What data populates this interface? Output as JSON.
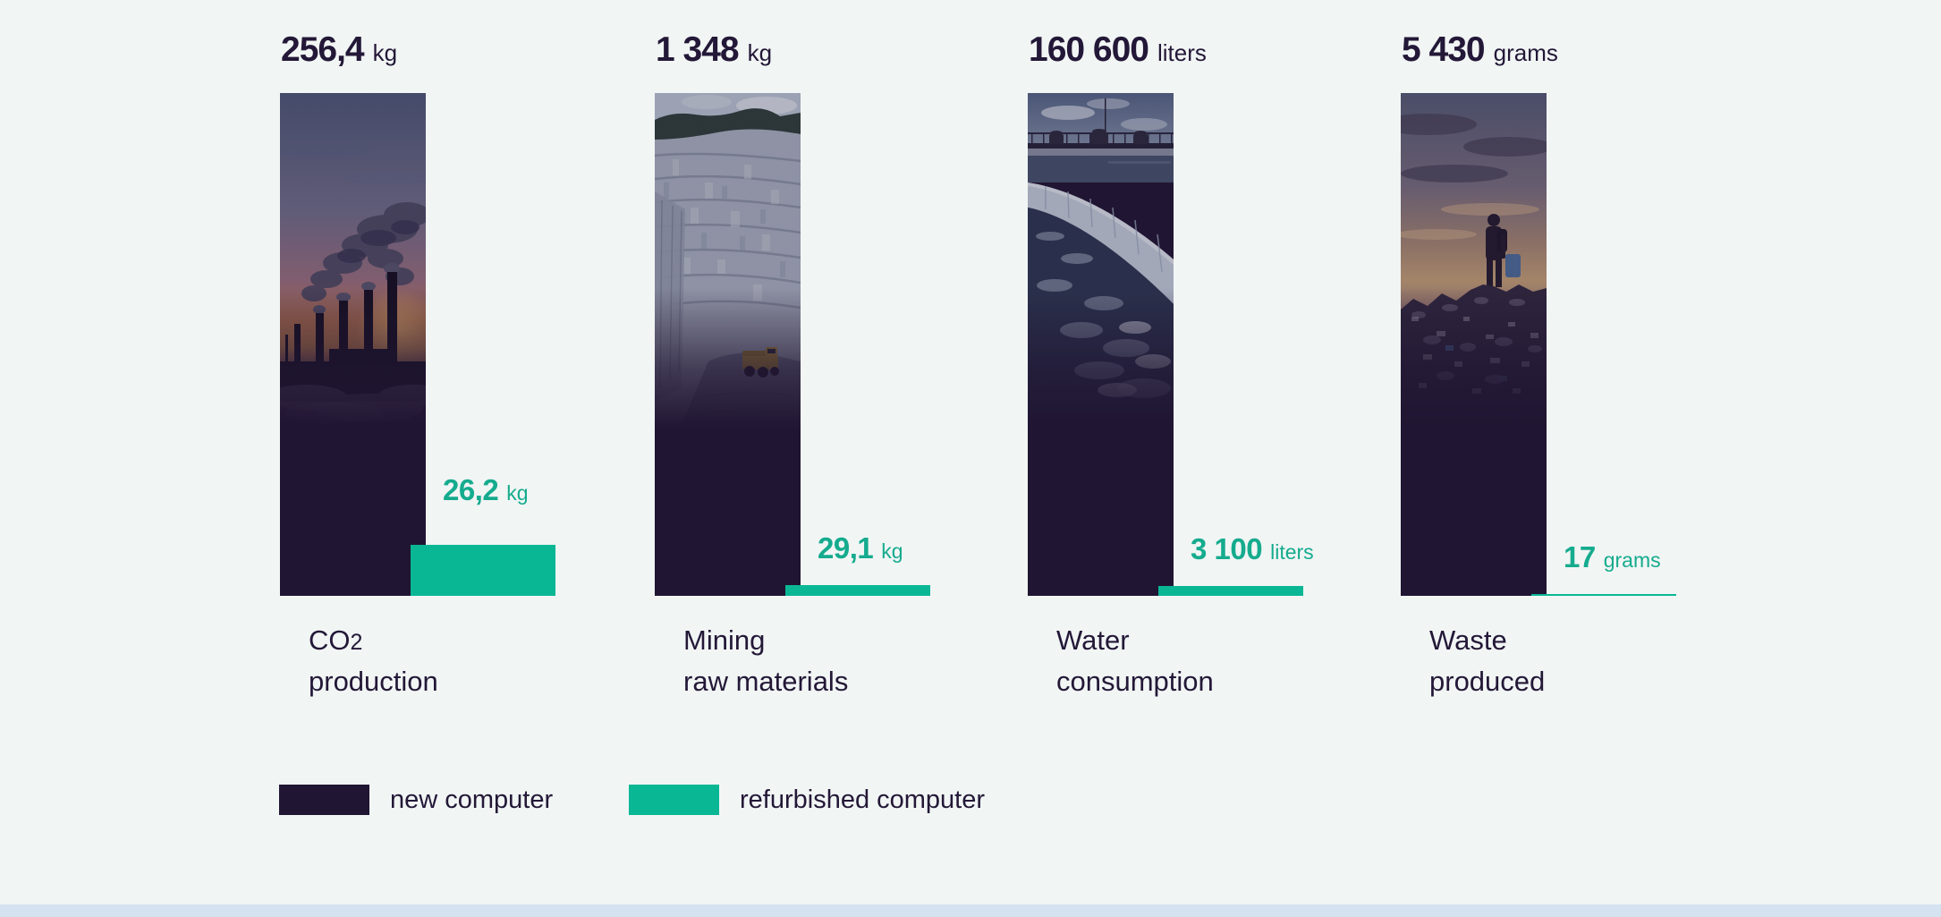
{
  "colors": {
    "background": "#f1f5f4",
    "navy": "#201532",
    "teal": "#0ab795",
    "teal_text": "#15ab8e",
    "bottom_strip": "#d5e3f1"
  },
  "chart_data": {
    "type": "bar",
    "title": "",
    "categories": [
      "CO2 production",
      "Mining raw materials",
      "Water consumption",
      "Waste produced"
    ],
    "series": [
      {
        "name": "new computer",
        "color": "#201532",
        "values": [
          256.4,
          1348,
          160600,
          5430
        ]
      },
      {
        "name": "refurbished computer",
        "color": "#0ab795",
        "values": [
          26.2,
          29.1,
          3100,
          17
        ]
      }
    ],
    "units": [
      "kg",
      "kg",
      "liters",
      "grams"
    ],
    "value_labels_new": [
      "256,4 kg",
      "1 348 kg",
      "160 600 liters",
      "5 430 grams"
    ],
    "value_labels_refurbished": [
      "26,2 kg",
      "29,1 kg",
      "3 100 liters",
      "17 grams"
    ],
    "layout": "grouped; each new-computer bar drawn full height with photo fill, refurbished bar scaled proportionally to same baseline",
    "legend_position": "bottom-left",
    "grid": false
  },
  "columns": [
    {
      "new_value": "256,4",
      "new_unit": "kg",
      "refurb_value": "26,2",
      "refurb_unit": "kg",
      "label_line1_main": "CO",
      "label_line1_sub": "2",
      "label_line2": "production",
      "photo_icon": "power-plant-photo"
    },
    {
      "new_value": "1 348",
      "new_unit": "kg",
      "refurb_value": "29,1",
      "refurb_unit": "kg",
      "label_line1_main": "Mining",
      "label_line1_sub": "",
      "label_line2": "raw materials",
      "photo_icon": "quarry-photo"
    },
    {
      "new_value": "160 600",
      "new_unit": "liters",
      "refurb_value": "3 100",
      "refurb_unit": "liters",
      "label_line1_main": "Water",
      "label_line1_sub": "",
      "label_line2": "consumption",
      "photo_icon": "water-dam-photo"
    },
    {
      "new_value": "5 430",
      "new_unit": "grams",
      "refurb_value": "17",
      "refurb_unit": "grams",
      "label_line1_main": "Waste",
      "label_line1_sub": "",
      "label_line2": "produced",
      "photo_icon": "landfill-photo"
    }
  ],
  "legend": {
    "items": [
      {
        "label": "new computer",
        "color": "#201532"
      },
      {
        "label": "refurbished computer",
        "color": "#0ab795"
      }
    ]
  }
}
